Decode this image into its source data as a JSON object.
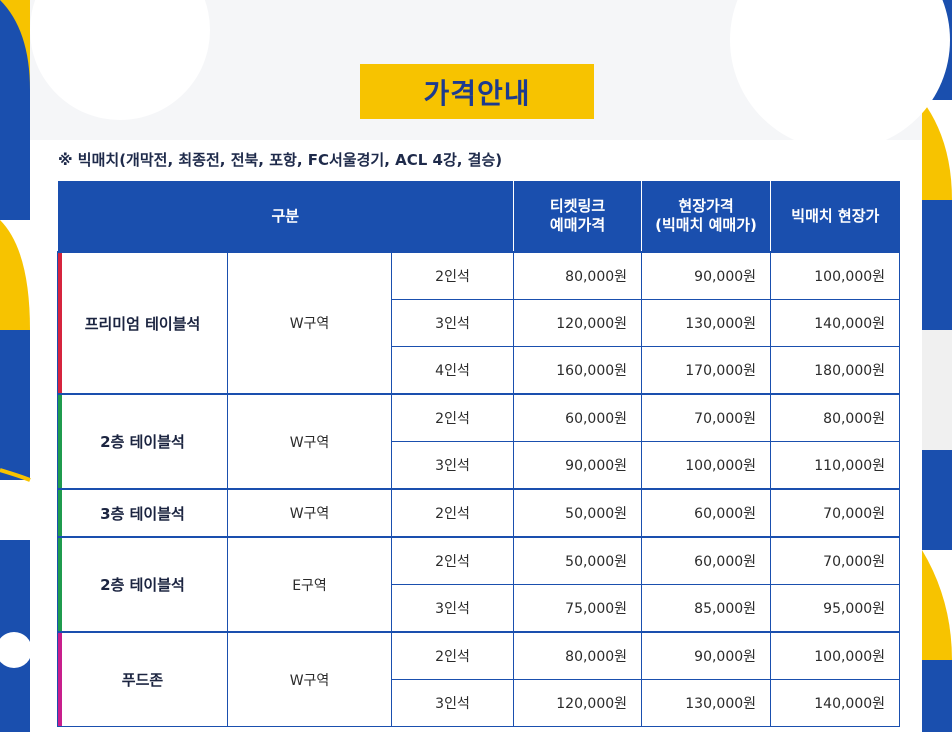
{
  "title": "가격안내",
  "note": "※ 빅매치(개막전, 최종전, 전북, 포항, FC서울경기, ACL 4강, 결승)",
  "colors": {
    "header": "#1a4fae",
    "title_bg": "#f7c300",
    "title_text": "#1d3b8f"
  },
  "table": {
    "headers": {
      "category": "구분",
      "ticketlink_line1": "티켓링크",
      "ticketlink_line2": "예매가격",
      "onsite_line1": "현장가격",
      "onsite_line2": "(빅매치 예매가)",
      "bigmatch": "빅매치 현장가"
    },
    "groups": [
      {
        "name": "프리미엄 테이블석",
        "zone": "W구역",
        "rows": [
          {
            "seat": "2인석",
            "ticketlink": "80,000원",
            "onsite": "90,000원",
            "bigmatch": "100,000원"
          },
          {
            "seat": "3인석",
            "ticketlink": "120,000원",
            "onsite": "130,000원",
            "bigmatch": "140,000원"
          },
          {
            "seat": "4인석",
            "ticketlink": "160,000원",
            "onsite": "170,000원",
            "bigmatch": "180,000원"
          }
        ]
      },
      {
        "name": "2층 테이블석",
        "zone": "W구역",
        "rows": [
          {
            "seat": "2인석",
            "ticketlink": "60,000원",
            "onsite": "70,000원",
            "bigmatch": "80,000원"
          },
          {
            "seat": "3인석",
            "ticketlink": "90,000원",
            "onsite": "100,000원",
            "bigmatch": "110,000원"
          }
        ]
      },
      {
        "name": "3층 테이블석",
        "zone": "W구역",
        "rows": [
          {
            "seat": "2인석",
            "ticketlink": "50,000원",
            "onsite": "60,000원",
            "bigmatch": "70,000원"
          }
        ]
      },
      {
        "name": "2층 테이블석",
        "zone": "E구역",
        "rows": [
          {
            "seat": "2인석",
            "ticketlink": "50,000원",
            "onsite": "60,000원",
            "bigmatch": "70,000원"
          },
          {
            "seat": "3인석",
            "ticketlink": "75,000원",
            "onsite": "85,000원",
            "bigmatch": "95,000원"
          }
        ]
      },
      {
        "name": "푸드존",
        "zone": "W구역",
        "rows": [
          {
            "seat": "2인석",
            "ticketlink": "80,000원",
            "onsite": "90,000원",
            "bigmatch": "100,000원"
          },
          {
            "seat": "3인석",
            "ticketlink": "120,000원",
            "onsite": "130,000원",
            "bigmatch": "140,000원"
          }
        ]
      }
    ]
  }
}
